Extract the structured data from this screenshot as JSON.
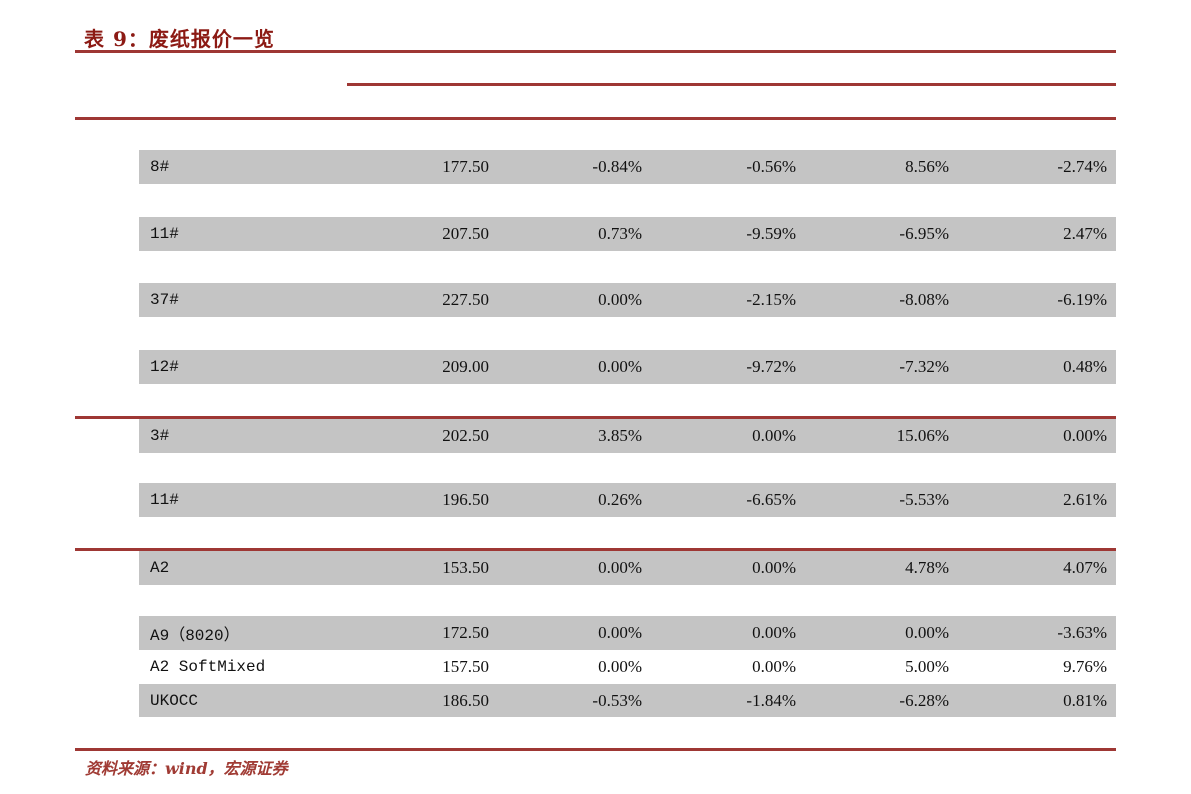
{
  "title": "表 9：废纸报价一览",
  "footer": {
    "source": "资料来源：wind，宏源证券"
  },
  "colors": {
    "accent_rule": "#9e3734",
    "title_text": "#8c1a14",
    "row_gray": "#c4c4c4",
    "footer_text": "#a03b34",
    "body_text": "#111111"
  },
  "table": {
    "rows": [
      {
        "label": "8#",
        "price": "177.50",
        "pct": [
          "-0.84%",
          "-0.56%",
          "8.56%",
          "-2.74%"
        ]
      },
      {
        "label": "11#",
        "price": "207.50",
        "pct": [
          "0.73%",
          "-9.59%",
          "-6.95%",
          "2.47%"
        ]
      },
      {
        "label": "37#",
        "price": "227.50",
        "pct": [
          "0.00%",
          "-2.15%",
          "-8.08%",
          "-6.19%"
        ]
      },
      {
        "label": "12#",
        "price": "209.00",
        "pct": [
          "0.00%",
          "-9.72%",
          "-7.32%",
          "0.48%"
        ]
      },
      {
        "label": "3#",
        "price": "202.50",
        "pct": [
          "3.85%",
          "0.00%",
          "15.06%",
          "0.00%"
        ]
      },
      {
        "label": "11#",
        "price": "196.50",
        "pct": [
          "0.26%",
          "-6.65%",
          "-5.53%",
          "2.61%"
        ]
      },
      {
        "label": "A2",
        "price": "153.50",
        "pct": [
          "0.00%",
          "0.00%",
          "4.78%",
          "4.07%"
        ]
      },
      {
        "label": "A9（8020）",
        "price": "172.50",
        "pct": [
          "0.00%",
          "0.00%",
          "0.00%",
          "-3.63%"
        ]
      },
      {
        "label": "A2 SoftMixed",
        "price": "157.50",
        "pct": [
          "0.00%",
          "0.00%",
          "5.00%",
          "9.76%"
        ]
      },
      {
        "label": "UKOCC",
        "price": "186.50",
        "pct": [
          "-0.53%",
          "-1.84%",
          "-6.28%",
          "0.81%"
        ]
      }
    ]
  }
}
